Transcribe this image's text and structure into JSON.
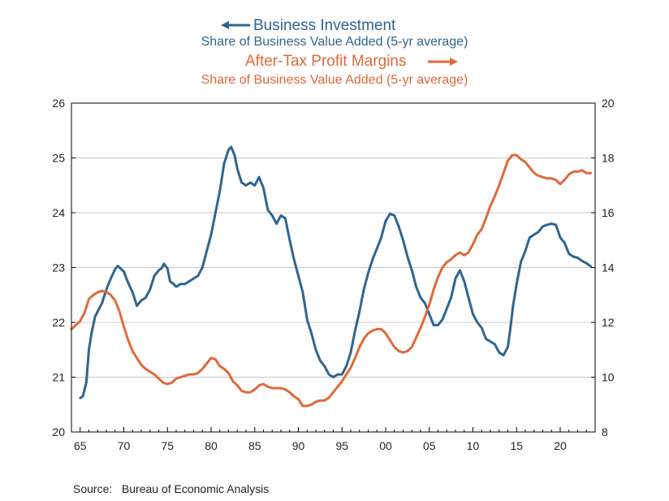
{
  "chart_data": {
    "type": "line",
    "series": [
      {
        "name": "Business Investment",
        "subtitle": "Share of Business Value Added (5-yr average)",
        "axis": "left",
        "color": "#2e6590",
        "points": [
          [
            1965.0,
            20.62
          ],
          [
            1965.3,
            20.65
          ],
          [
            1965.7,
            20.9
          ],
          [
            1966.0,
            21.5
          ],
          [
            1966.3,
            21.8
          ],
          [
            1966.7,
            22.1
          ],
          [
            1967.0,
            22.2
          ],
          [
            1967.5,
            22.35
          ],
          [
            1968.0,
            22.6
          ],
          [
            1968.5,
            22.8
          ],
          [
            1969.0,
            22.97
          ],
          [
            1969.3,
            23.03
          ],
          [
            1969.7,
            22.97
          ],
          [
            1970.0,
            22.93
          ],
          [
            1970.3,
            22.8
          ],
          [
            1970.7,
            22.65
          ],
          [
            1971.0,
            22.55
          ],
          [
            1971.5,
            22.3
          ],
          [
            1972.0,
            22.4
          ],
          [
            1972.5,
            22.45
          ],
          [
            1973.0,
            22.6
          ],
          [
            1973.5,
            22.85
          ],
          [
            1974.0,
            22.95
          ],
          [
            1974.3,
            22.98
          ],
          [
            1974.6,
            23.07
          ],
          [
            1975.0,
            22.98
          ],
          [
            1975.3,
            22.75
          ],
          [
            1975.7,
            22.7
          ],
          [
            1976.0,
            22.65
          ],
          [
            1976.5,
            22.7
          ],
          [
            1977.0,
            22.7
          ],
          [
            1977.5,
            22.75
          ],
          [
            1978.0,
            22.8
          ],
          [
            1978.5,
            22.85
          ],
          [
            1979.0,
            23.0
          ],
          [
            1979.5,
            23.3
          ],
          [
            1980.0,
            23.6
          ],
          [
            1980.5,
            24.0
          ],
          [
            1981.0,
            24.4
          ],
          [
            1981.5,
            24.9
          ],
          [
            1982.0,
            25.15
          ],
          [
            1982.3,
            25.2
          ],
          [
            1982.7,
            25.05
          ],
          [
            1983.0,
            24.8
          ],
          [
            1983.5,
            24.55
          ],
          [
            1984.0,
            24.5
          ],
          [
            1984.5,
            24.55
          ],
          [
            1985.0,
            24.5
          ],
          [
            1985.5,
            24.65
          ],
          [
            1986.0,
            24.45
          ],
          [
            1986.5,
            24.05
          ],
          [
            1987.0,
            23.95
          ],
          [
            1987.5,
            23.8
          ],
          [
            1988.0,
            23.95
          ],
          [
            1988.5,
            23.9
          ],
          [
            1989.0,
            23.5
          ],
          [
            1989.5,
            23.15
          ],
          [
            1990.0,
            22.85
          ],
          [
            1990.5,
            22.55
          ],
          [
            1991.0,
            22.05
          ],
          [
            1991.5,
            21.8
          ],
          [
            1992.0,
            21.5
          ],
          [
            1992.5,
            21.3
          ],
          [
            1993.0,
            21.2
          ],
          [
            1993.5,
            21.05
          ],
          [
            1994.0,
            21.0
          ],
          [
            1994.5,
            21.05
          ],
          [
            1995.0,
            21.05
          ],
          [
            1995.5,
            21.2
          ],
          [
            1996.0,
            21.45
          ],
          [
            1996.5,
            21.85
          ],
          [
            1997.0,
            22.2
          ],
          [
            1997.5,
            22.6
          ],
          [
            1998.0,
            22.9
          ],
          [
            1998.5,
            23.15
          ],
          [
            1999.0,
            23.35
          ],
          [
            1999.5,
            23.55
          ],
          [
            2000.0,
            23.85
          ],
          [
            2000.5,
            23.98
          ],
          [
            2001.0,
            23.95
          ],
          [
            2001.5,
            23.75
          ],
          [
            2002.0,
            23.5
          ],
          [
            2002.5,
            23.2
          ],
          [
            2003.0,
            22.95
          ],
          [
            2003.5,
            22.65
          ],
          [
            2004.0,
            22.45
          ],
          [
            2004.5,
            22.35
          ],
          [
            2005.0,
            22.15
          ],
          [
            2005.5,
            21.95
          ],
          [
            2006.0,
            21.95
          ],
          [
            2006.5,
            22.05
          ],
          [
            2007.0,
            22.25
          ],
          [
            2007.5,
            22.45
          ],
          [
            2008.0,
            22.8
          ],
          [
            2008.5,
            22.95
          ],
          [
            2009.0,
            22.75
          ],
          [
            2009.5,
            22.45
          ],
          [
            2010.0,
            22.15
          ],
          [
            2010.5,
            22.0
          ],
          [
            2011.0,
            21.9
          ],
          [
            2011.5,
            21.7
          ],
          [
            2012.0,
            21.65
          ],
          [
            2012.5,
            21.6
          ],
          [
            2013.0,
            21.45
          ],
          [
            2013.5,
            21.4
          ],
          [
            2014.0,
            21.55
          ],
          [
            2014.3,
            21.9
          ],
          [
            2014.6,
            22.3
          ],
          [
            2015.0,
            22.7
          ],
          [
            2015.5,
            23.1
          ],
          [
            2016.0,
            23.3
          ],
          [
            2016.5,
            23.55
          ],
          [
            2017.0,
            23.6
          ],
          [
            2017.5,
            23.65
          ],
          [
            2018.0,
            23.75
          ],
          [
            2018.5,
            23.78
          ],
          [
            2019.0,
            23.8
          ],
          [
            2019.5,
            23.78
          ],
          [
            2020.0,
            23.55
          ],
          [
            2020.5,
            23.45
          ],
          [
            2021.0,
            23.25
          ],
          [
            2021.5,
            23.2
          ],
          [
            2022.0,
            23.18
          ],
          [
            2022.5,
            23.12
          ],
          [
            2023.0,
            23.08
          ],
          [
            2023.5,
            23.02
          ]
        ]
      },
      {
        "name": "After-Tax Profit Margins",
        "subtitle": "Share of Business Value Added  (5-yr average)",
        "axis": "right",
        "color": "#e0693a",
        "points": [
          [
            1964.0,
            11.75
          ],
          [
            1964.5,
            11.9
          ],
          [
            1965.0,
            12.05
          ],
          [
            1965.5,
            12.35
          ],
          [
            1966.0,
            12.85
          ],
          [
            1966.5,
            13.0
          ],
          [
            1967.0,
            13.1
          ],
          [
            1967.5,
            13.15
          ],
          [
            1968.0,
            13.1
          ],
          [
            1968.5,
            13.0
          ],
          [
            1969.0,
            12.8
          ],
          [
            1969.5,
            12.4
          ],
          [
            1970.0,
            11.85
          ],
          [
            1970.5,
            11.35
          ],
          [
            1971.0,
            10.95
          ],
          [
            1971.5,
            10.7
          ],
          [
            1972.0,
            10.45
          ],
          [
            1972.5,
            10.3
          ],
          [
            1973.0,
            10.2
          ],
          [
            1973.5,
            10.1
          ],
          [
            1974.0,
            9.95
          ],
          [
            1974.5,
            9.8
          ],
          [
            1975.0,
            9.75
          ],
          [
            1975.5,
            9.8
          ],
          [
            1976.0,
            9.95
          ],
          [
            1976.5,
            10.0
          ],
          [
            1977.0,
            10.05
          ],
          [
            1977.5,
            10.1
          ],
          [
            1978.0,
            10.1
          ],
          [
            1978.5,
            10.15
          ],
          [
            1979.0,
            10.3
          ],
          [
            1979.5,
            10.5
          ],
          [
            1980.0,
            10.7
          ],
          [
            1980.5,
            10.65
          ],
          [
            1981.0,
            10.4
          ],
          [
            1981.5,
            10.3
          ],
          [
            1982.0,
            10.15
          ],
          [
            1982.5,
            9.85
          ],
          [
            1983.0,
            9.7
          ],
          [
            1983.5,
            9.5
          ],
          [
            1984.0,
            9.45
          ],
          [
            1984.5,
            9.45
          ],
          [
            1985.0,
            9.55
          ],
          [
            1985.5,
            9.7
          ],
          [
            1986.0,
            9.75
          ],
          [
            1986.5,
            9.65
          ],
          [
            1987.0,
            9.6
          ],
          [
            1987.5,
            9.6
          ],
          [
            1988.0,
            9.6
          ],
          [
            1988.5,
            9.55
          ],
          [
            1989.0,
            9.45
          ],
          [
            1989.5,
            9.3
          ],
          [
            1990.0,
            9.2
          ],
          [
            1990.5,
            8.95
          ],
          [
            1991.0,
            8.95
          ],
          [
            1991.5,
            9.0
          ],
          [
            1992.0,
            9.1
          ],
          [
            1992.5,
            9.15
          ],
          [
            1993.0,
            9.15
          ],
          [
            1993.5,
            9.25
          ],
          [
            1994.0,
            9.45
          ],
          [
            1994.5,
            9.65
          ],
          [
            1995.0,
            9.85
          ],
          [
            1995.5,
            10.1
          ],
          [
            1996.0,
            10.35
          ],
          [
            1996.5,
            10.7
          ],
          [
            1997.0,
            11.1
          ],
          [
            1997.5,
            11.4
          ],
          [
            1998.0,
            11.6
          ],
          [
            1998.5,
            11.7
          ],
          [
            1999.0,
            11.75
          ],
          [
            1999.5,
            11.75
          ],
          [
            2000.0,
            11.6
          ],
          [
            2000.5,
            11.35
          ],
          [
            2001.0,
            11.1
          ],
          [
            2001.5,
            10.95
          ],
          [
            2002.0,
            10.9
          ],
          [
            2002.5,
            10.95
          ],
          [
            2003.0,
            11.1
          ],
          [
            2003.5,
            11.45
          ],
          [
            2004.0,
            11.8
          ],
          [
            2004.5,
            12.2
          ],
          [
            2005.0,
            12.65
          ],
          [
            2005.5,
            13.2
          ],
          [
            2006.0,
            13.65
          ],
          [
            2006.5,
            14.0
          ],
          [
            2007.0,
            14.2
          ],
          [
            2007.5,
            14.3
          ],
          [
            2008.0,
            14.45
          ],
          [
            2008.5,
            14.55
          ],
          [
            2009.0,
            14.45
          ],
          [
            2009.5,
            14.55
          ],
          [
            2010.0,
            14.85
          ],
          [
            2010.5,
            15.2
          ],
          [
            2011.0,
            15.4
          ],
          [
            2011.5,
            15.8
          ],
          [
            2012.0,
            16.25
          ],
          [
            2012.5,
            16.6
          ],
          [
            2013.0,
            17.0
          ],
          [
            2013.5,
            17.45
          ],
          [
            2014.0,
            17.9
          ],
          [
            2014.5,
            18.1
          ],
          [
            2015.0,
            18.1
          ],
          [
            2015.5,
            17.95
          ],
          [
            2016.0,
            17.85
          ],
          [
            2016.5,
            17.65
          ],
          [
            2017.0,
            17.45
          ],
          [
            2017.5,
            17.35
          ],
          [
            2018.0,
            17.3
          ],
          [
            2018.5,
            17.25
          ],
          [
            2019.0,
            17.25
          ],
          [
            2019.5,
            17.2
          ],
          [
            2020.0,
            17.05
          ],
          [
            2020.5,
            17.2
          ],
          [
            2021.0,
            17.4
          ],
          [
            2021.5,
            17.5
          ],
          [
            2022.0,
            17.5
          ],
          [
            2022.5,
            17.55
          ],
          [
            2023.0,
            17.45
          ],
          [
            2023.5,
            17.45
          ]
        ]
      }
    ],
    "x_range": [
      1964,
      2024
    ],
    "x_ticks": [
      {
        "value": 1965,
        "label": "65"
      },
      {
        "value": 1970,
        "label": "70"
      },
      {
        "value": 1975,
        "label": "75"
      },
      {
        "value": 1980,
        "label": "80"
      },
      {
        "value": 1985,
        "label": "85"
      },
      {
        "value": 1990,
        "label": "90"
      },
      {
        "value": 1995,
        "label": "95"
      },
      {
        "value": 2000,
        "label": "00"
      },
      {
        "value": 2005,
        "label": "05"
      },
      {
        "value": 2010,
        "label": "10"
      },
      {
        "value": 2015,
        "label": "15"
      },
      {
        "value": 2020,
        "label": "20"
      }
    ],
    "left_axis": {
      "range": [
        20,
        26
      ],
      "ticks": [
        20,
        21,
        22,
        23,
        24,
        25,
        26
      ]
    },
    "right_axis": {
      "range": [
        8,
        20
      ],
      "ticks": [
        8,
        10,
        12,
        14,
        16,
        18,
        20
      ]
    },
    "grid": "horizontal",
    "legend": {
      "left_series_arrow": "left",
      "right_series_arrow": "right"
    },
    "source": "Source:   Bureau of Economic Analysis"
  }
}
